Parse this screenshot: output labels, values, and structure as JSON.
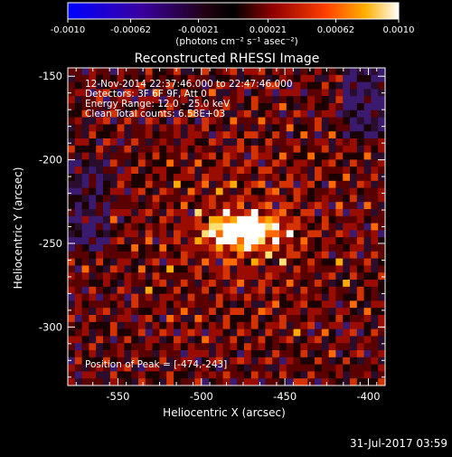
{
  "chart_data": {
    "type": "heatmap",
    "title": "Reconstructed RHESSI Image",
    "xlabel": "Heliocentric X (arcsec)",
    "ylabel": "Heliocentric Y (arcsec)",
    "xlim": [
      -580,
      -390
    ],
    "ylim": [
      -335,
      -145
    ],
    "x_ticks": [
      "-550",
      "-500",
      "-450",
      "-400"
    ],
    "x_tick_values": [
      -550,
      -500,
      -450,
      -400
    ],
    "y_ticks": [
      "-150",
      "-200",
      "-250",
      "-300"
    ],
    "y_tick_values": [
      -150,
      -200,
      -250,
      -300
    ],
    "colorbar": {
      "range": [
        -0.001,
        0.001
      ],
      "tick_labels": [
        "-0.0010",
        "-0.00062",
        "-0.00021",
        "0.00021",
        "0.00062",
        "0.0010"
      ],
      "tick_values": [
        -0.001,
        -0.00062,
        -0.00021,
        0.00021,
        0.00062,
        0.001
      ],
      "units_label": "(photons cm⁻² s⁻¹ asec⁻²)"
    },
    "annotations": [
      "12-Nov-2014 22:37:46.000 to 22:47:46.000",
      "Detectors: 3F 6F 9F, Att 0",
      "Energy Range: 12.0 - 25.0 keV",
      "Clean     Total counts: 6.58E+03"
    ],
    "peak": {
      "label": "Position of Peak = [-474,-243]",
      "x": -474,
      "y": -243
    },
    "timestamp": "31-Jul-2017 03:59"
  }
}
